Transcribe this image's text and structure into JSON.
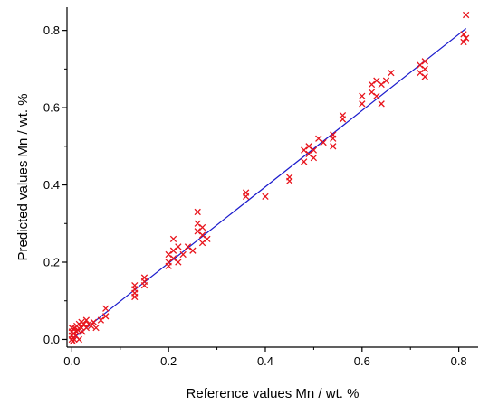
{
  "chart_data": {
    "type": "scatter",
    "xlabel": "Reference values Mn / wt. %",
    "ylabel": "Predicted values Mn / wt. %",
    "xlim": [
      -0.01,
      0.84
    ],
    "ylim": [
      -0.02,
      0.86
    ],
    "xticks": [
      0.0,
      0.2,
      0.4,
      0.6,
      0.8
    ],
    "xtick_labels": [
      "0.0",
      "0.2",
      "0.4",
      "0.6",
      "0.8"
    ],
    "yticks": [
      0.0,
      0.2,
      0.4,
      0.6,
      0.8
    ],
    "ytick_labels": [
      "0.0",
      "0.2",
      "0.4",
      "0.6",
      "0.8"
    ],
    "grid": false,
    "legend": "none",
    "colors": {
      "points": "#e8141c",
      "fit_line": "#1a1acc",
      "axes": "#000000"
    },
    "marker": "x",
    "fit_line": {
      "x": [
        0.0,
        0.815
      ],
      "y": [
        0.0,
        0.805
      ]
    },
    "points": {
      "x": [
        0.0,
        0.0,
        0.0,
        0.0,
        0.002,
        0.003,
        0.005,
        0.005,
        0.008,
        0.01,
        0.01,
        0.012,
        0.015,
        0.015,
        0.02,
        0.02,
        0.022,
        0.025,
        0.03,
        0.03,
        0.035,
        0.04,
        0.045,
        0.05,
        0.06,
        0.07,
        0.07,
        0.13,
        0.13,
        0.13,
        0.13,
        0.15,
        0.15,
        0.15,
        0.2,
        0.2,
        0.2,
        0.21,
        0.21,
        0.21,
        0.22,
        0.22,
        0.23,
        0.24,
        0.25,
        0.26,
        0.26,
        0.26,
        0.27,
        0.27,
        0.27,
        0.28,
        0.36,
        0.36,
        0.4,
        0.45,
        0.45,
        0.48,
        0.48,
        0.49,
        0.49,
        0.5,
        0.5,
        0.51,
        0.52,
        0.54,
        0.54,
        0.54,
        0.56,
        0.56,
        0.6,
        0.6,
        0.62,
        0.62,
        0.63,
        0.63,
        0.64,
        0.64,
        0.65,
        0.66,
        0.72,
        0.72,
        0.73,
        0.73,
        0.73,
        0.81,
        0.81,
        0.815,
        0.815
      ],
      "y": [
        0.0,
        0.01,
        0.02,
        0.03,
        -0.005,
        0.015,
        0.0,
        0.03,
        0.01,
        0.02,
        0.035,
        0.025,
        0.0,
        0.04,
        0.03,
        0.045,
        0.02,
        0.04,
        0.03,
        0.05,
        0.04,
        0.035,
        0.045,
        0.03,
        0.05,
        0.06,
        0.08,
        0.11,
        0.13,
        0.12,
        0.14,
        0.14,
        0.16,
        0.15,
        0.2,
        0.22,
        0.19,
        0.21,
        0.23,
        0.26,
        0.2,
        0.24,
        0.22,
        0.24,
        0.23,
        0.28,
        0.3,
        0.33,
        0.29,
        0.25,
        0.27,
        0.26,
        0.37,
        0.38,
        0.37,
        0.41,
        0.42,
        0.46,
        0.49,
        0.5,
        0.48,
        0.47,
        0.49,
        0.52,
        0.51,
        0.53,
        0.5,
        0.52,
        0.57,
        0.58,
        0.61,
        0.63,
        0.64,
        0.66,
        0.63,
        0.67,
        0.66,
        0.61,
        0.67,
        0.69,
        0.69,
        0.71,
        0.68,
        0.7,
        0.72,
        0.77,
        0.79,
        0.84,
        0.78
      ]
    }
  }
}
